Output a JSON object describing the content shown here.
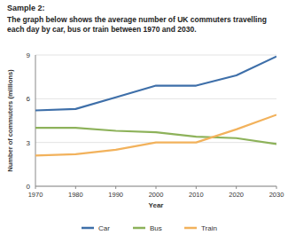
{
  "heading": "Sample 2:",
  "chart_data": {
    "type": "line",
    "title": "The graph below shows the average number of UK commuters travelling each day by car, bus or train between 1970 and 2030.",
    "xlabel": "Year",
    "ylabel": "Number of commuters (millions)",
    "x": [
      1970,
      1980,
      1990,
      2000,
      2010,
      2020,
      2030
    ],
    "xlim": [
      1970,
      2030
    ],
    "xticks": [
      1970,
      1980,
      1990,
      2000,
      2010,
      2020,
      2030
    ],
    "ylim": [
      0,
      9
    ],
    "yticks": [
      0,
      3,
      6,
      9
    ],
    "grid": true,
    "legend": "bottom",
    "series": [
      {
        "name": "Car",
        "color": "#3e6fa9",
        "values": [
          5.2,
          5.3,
          6.1,
          6.9,
          6.9,
          7.6,
          8.9
        ]
      },
      {
        "name": "Bus",
        "color": "#8db25a",
        "values": [
          4.0,
          4.0,
          3.8,
          3.7,
          3.4,
          3.3,
          2.9
        ]
      },
      {
        "name": "Train",
        "color": "#f2b25c",
        "values": [
          2.1,
          2.2,
          2.5,
          3.0,
          3.0,
          3.9,
          4.9
        ]
      }
    ]
  }
}
